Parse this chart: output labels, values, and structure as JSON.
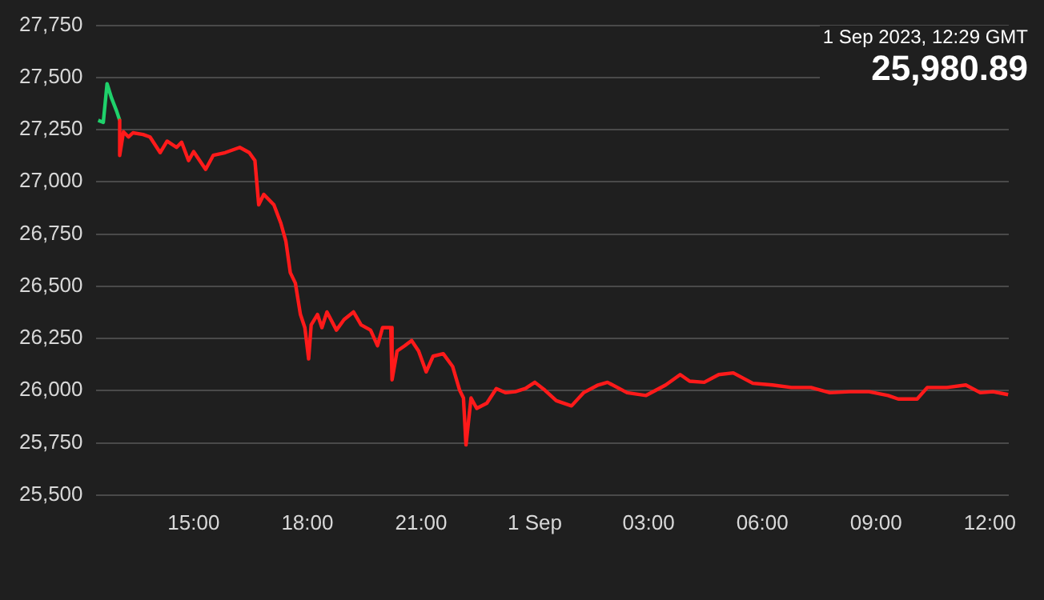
{
  "chart_data": {
    "type": "line",
    "annotations": [
      "1 Sep 2023, 12:29 GMT",
      "25,980.89"
    ],
    "xlim": [
      "2023-08-31T12:25",
      "2023-09-01T12:30"
    ],
    "xticks": [
      {
        "value": "2023-08-31T15:00",
        "label": "15:00"
      },
      {
        "value": "2023-08-31T18:00",
        "label": "18:00"
      },
      {
        "value": "2023-08-31T21:00",
        "label": "21:00"
      },
      {
        "value": "2023-09-01T00:00",
        "label": "1 Sep"
      },
      {
        "value": "2023-09-01T03:00",
        "label": "03:00"
      },
      {
        "value": "2023-09-01T06:00",
        "label": "06:00"
      },
      {
        "value": "2023-09-01T09:00",
        "label": "09:00"
      },
      {
        "value": "2023-09-01T12:00",
        "label": "12:00"
      }
    ],
    "ylim": [
      25500,
      27750
    ],
    "yticks": [
      {
        "value": 25500,
        "label": "25,500"
      },
      {
        "value": 25750,
        "label": "25,750"
      },
      {
        "value": 26000,
        "label": "26,000"
      },
      {
        "value": 26250,
        "label": "26,250"
      },
      {
        "value": 26500,
        "label": "26,500"
      },
      {
        "value": 26750,
        "label": "26,750"
      },
      {
        "value": 27000,
        "label": "27,000"
      },
      {
        "value": 27250,
        "label": "27,250"
      },
      {
        "value": 27500,
        "label": "27,500"
      },
      {
        "value": 27750,
        "label": "27,750"
      }
    ],
    "grid": "y",
    "legend": false,
    "marker": "none",
    "line_style": "solid",
    "series": [
      {
        "color": "#ff1a1a",
        "x": [
          "2023-08-31T13:03",
          "2023-08-31T13:03",
          "2023-08-31T13:09",
          "2023-08-31T13:17",
          "2023-08-31T13:24",
          "2023-08-31T13:40",
          "2023-08-31T13:51",
          "2023-08-31T14:07",
          "2023-08-31T14:18",
          "2023-08-31T14:33",
          "2023-08-31T14:41",
          "2023-08-31T14:52",
          "2023-08-31T15:00",
          "2023-08-31T15:19",
          "2023-08-31T15:31",
          "2023-08-31T15:50",
          "2023-08-31T16:13",
          "2023-08-31T16:28",
          "2023-08-31T16:37",
          "2023-08-31T16:43",
          "2023-08-31T16:51",
          "2023-08-31T17:07",
          "2023-08-31T17:18",
          "2023-08-31T17:26",
          "2023-08-31T17:33",
          "2023-08-31T17:41",
          "2023-08-31T17:49",
          "2023-08-31T17:56",
          "2023-08-31T18:02",
          "2023-08-31T18:06",
          "2023-08-31T18:16",
          "2023-08-31T18:23",
          "2023-08-31T18:31",
          "2023-08-31T18:46",
          "2023-08-31T18:58",
          "2023-08-31T19:13",
          "2023-08-31T19:25",
          "2023-08-31T19:40",
          "2023-08-31T19:51",
          "2023-08-31T19:59",
          "2023-08-31T20:12",
          "2023-08-31T20:14",
          "2023-08-31T20:22",
          "2023-08-31T20:34",
          "2023-08-31T20:45",
          "2023-08-31T20:56",
          "2023-08-31T21:08",
          "2023-08-31T21:19",
          "2023-08-31T21:35",
          "2023-08-31T21:50",
          "2023-08-31T22:01",
          "2023-08-31T22:07",
          "2023-08-31T22:11",
          "2023-08-31T22:19",
          "2023-08-31T22:28",
          "2023-08-31T22:44",
          "2023-08-31T22:59",
          "2023-08-31T23:14",
          "2023-08-31T23:29",
          "2023-08-31T23:45",
          "2023-09-01T00:00",
          "2023-09-01T00:16",
          "2023-09-01T00:34",
          "2023-09-01T00:58",
          "2023-09-01T01:17",
          "2023-09-01T01:40",
          "2023-09-01T01:55",
          "2023-09-01T02:26",
          "2023-09-01T02:56",
          "2023-09-01T03:27",
          "2023-09-01T03:50",
          "2023-09-01T04:05",
          "2023-09-01T04:28",
          "2023-09-01T04:51",
          "2023-09-01T05:14",
          "2023-09-01T05:45",
          "2023-09-01T06:16",
          "2023-09-01T06:46",
          "2023-09-01T07:17",
          "2023-09-01T07:47",
          "2023-09-01T08:18",
          "2023-09-01T08:49",
          "2023-09-01T09:19",
          "2023-09-01T09:35",
          "2023-09-01T10:05",
          "2023-09-01T10:21",
          "2023-09-01T10:52",
          "2023-09-01T11:22",
          "2023-09-01T11:45",
          "2023-09-01T12:05",
          "2023-09-01T12:29"
        ],
        "values": [
          27295,
          27127,
          27240,
          27215,
          27235,
          27227,
          27215,
          27140,
          27195,
          27165,
          27190,
          27102,
          27145,
          27060,
          27127,
          27140,
          27165,
          27140,
          27102,
          26890,
          26940,
          26890,
          26802,
          26715,
          26565,
          26515,
          26365,
          26302,
          26152,
          26315,
          26365,
          26302,
          26377,
          26290,
          26340,
          26377,
          26315,
          26290,
          26215,
          26302,
          26302,
          26052,
          26190,
          26215,
          26240,
          26190,
          26090,
          26165,
          26177,
          26115,
          26002,
          25965,
          25740,
          25965,
          25915,
          25940,
          26010,
          25990,
          25995,
          26010,
          26040,
          26002,
          25952,
          25927,
          25990,
          26027,
          26040,
          25990,
          25977,
          26027,
          26077,
          26045,
          26040,
          26077,
          26085,
          26035,
          26027,
          26015,
          26015,
          25990,
          25995,
          25995,
          25977,
          25960,
          25960,
          26015,
          26015,
          26027,
          25990,
          25995,
          25981
        ]
      },
      {
        "color": "#1fd16b",
        "x": [
          "2023-08-31T12:29",
          "2023-08-31T12:37",
          "2023-08-31T12:43",
          "2023-08-31T12:50",
          "2023-08-31T12:58",
          "2023-08-31T13:03"
        ],
        "values": [
          27295,
          27285,
          27470,
          27402,
          27340,
          27295
        ]
      }
    ]
  }
}
